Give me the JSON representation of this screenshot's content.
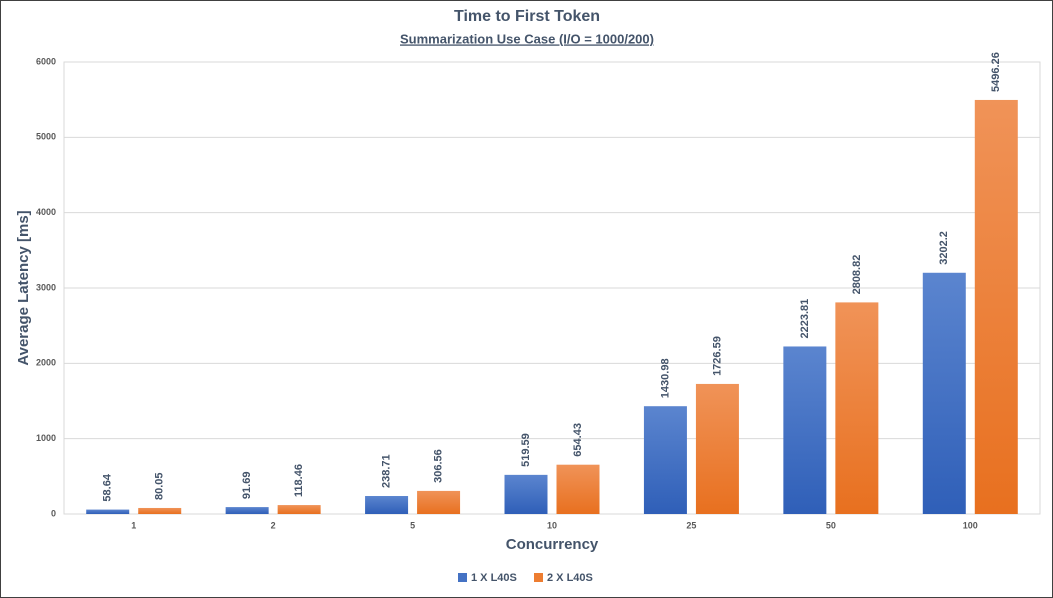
{
  "chart_data": {
    "type": "bar",
    "title": "Time to First Token",
    "subtitle": "Summarization Use Case (I/O = 1000/200)",
    "x_label": "Concurrency",
    "y_label": "Average Latency [ms]",
    "categories": [
      "1",
      "2",
      "5",
      "10",
      "25",
      "50",
      "100"
    ],
    "series": [
      {
        "name": "1 X L40S",
        "color": "#4472c4",
        "values": [
          58.64,
          91.69,
          238.71,
          519.59,
          1430.98,
          2223.81,
          3202.2
        ]
      },
      {
        "name": "2 X L40S",
        "color": "#ed7d31",
        "values": [
          80.05,
          118.46,
          306.56,
          654.43,
          1726.59,
          2808.82,
          5496.26
        ]
      }
    ],
    "ylim": [
      0,
      6000
    ],
    "yticks": [
      0,
      1000,
      2000,
      3000,
      4000,
      5000,
      6000
    ],
    "grid": true,
    "legend": "bottom"
  }
}
